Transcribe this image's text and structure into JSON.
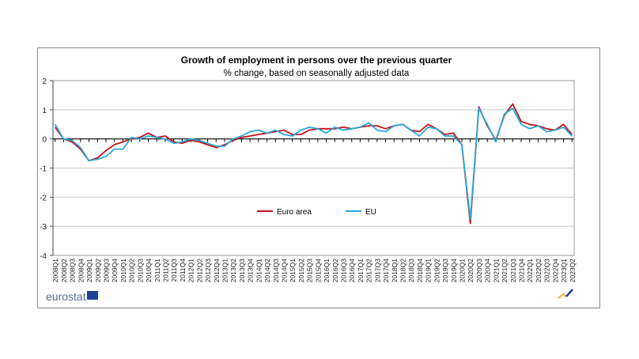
{
  "chart_data": {
    "type": "line",
    "title": "Growth of employment in persons over the previous quarter",
    "subtitle": "% change, based on seasonally adjusted data",
    "xlabel": "",
    "ylabel": "",
    "ylim": [
      -4,
      2
    ],
    "yticks": [
      "2",
      "1",
      "0",
      "-1",
      "-2",
      "-3",
      "-4"
    ],
    "grid": true,
    "legend_position": "center-bottom inside plot",
    "categories": [
      "2008Q1",
      "2008Q2",
      "2008Q3",
      "2008Q4",
      "2009Q1",
      "2009Q2",
      "2009Q3",
      "2009Q4",
      "2010Q1",
      "2010Q2",
      "2010Q3",
      "2010Q4",
      "2011Q1",
      "2011Q2",
      "2011Q3",
      "2011Q4",
      "2012Q1",
      "2012Q2",
      "2012Q3",
      "2012Q4",
      "2013Q1",
      "2013Q2",
      "2013Q3",
      "2013Q4",
      "2014Q1",
      "2014Q2",
      "2014Q3",
      "2014Q4",
      "2015Q1",
      "2015Q2",
      "2015Q3",
      "2015Q4",
      "2016Q1",
      "2016Q2",
      "2016Q3",
      "2016Q4",
      "2017Q1",
      "2017Q2",
      "2017Q3",
      "2017Q4",
      "2018Q1",
      "2018Q2",
      "2018Q3",
      "2018Q4",
      "2019Q1",
      "2019Q2",
      "2019Q3",
      "2019Q4",
      "2020Q1",
      "2020Q2",
      "2020Q3",
      "2020Q4",
      "2021Q1",
      "2021Q2",
      "2021Q3",
      "2021Q4",
      "2022Q1",
      "2022Q2",
      "2022Q3",
      "2022Q4",
      "2023Q1",
      "2023Q2"
    ],
    "series": [
      {
        "name": "Euro area",
        "color": "#c0141e",
        "values": [
          0.4,
          0.0,
          -0.1,
          -0.35,
          -0.75,
          -0.65,
          -0.4,
          -0.2,
          -0.1,
          0.0,
          0.05,
          0.2,
          0.05,
          0.1,
          -0.1,
          -0.15,
          -0.05,
          -0.1,
          -0.2,
          -0.3,
          -0.2,
          -0.05,
          0.05,
          0.1,
          0.15,
          0.2,
          0.25,
          0.3,
          0.15,
          0.15,
          0.3,
          0.35,
          0.35,
          0.35,
          0.4,
          0.35,
          0.4,
          0.45,
          0.45,
          0.35,
          0.45,
          0.5,
          0.3,
          0.25,
          0.5,
          0.35,
          0.15,
          0.2,
          -0.2,
          -2.9,
          1.1,
          0.45,
          -0.05,
          0.8,
          1.2,
          0.6,
          0.5,
          0.45,
          0.35,
          0.3,
          0.5,
          0.15
        ]
      },
      {
        "name": "EU",
        "color": "#2aa7d6",
        "values": [
          0.5,
          0.0,
          -0.05,
          -0.3,
          -0.75,
          -0.7,
          -0.6,
          -0.35,
          -0.35,
          0.05,
          0.0,
          0.1,
          0.05,
          0.0,
          -0.15,
          -0.1,
          0.0,
          -0.05,
          -0.15,
          -0.25,
          -0.25,
          0.0,
          0.1,
          0.25,
          0.3,
          0.2,
          0.3,
          0.15,
          0.1,
          0.3,
          0.4,
          0.35,
          0.2,
          0.4,
          0.3,
          0.35,
          0.4,
          0.55,
          0.3,
          0.25,
          0.45,
          0.5,
          0.3,
          0.1,
          0.4,
          0.35,
          0.1,
          0.1,
          -0.2,
          -2.75,
          1.05,
          0.5,
          -0.1,
          0.85,
          1.05,
          0.5,
          0.35,
          0.45,
          0.25,
          0.3,
          0.4,
          0.1
        ]
      }
    ]
  },
  "branding": {
    "logo_text": "eurostat"
  }
}
